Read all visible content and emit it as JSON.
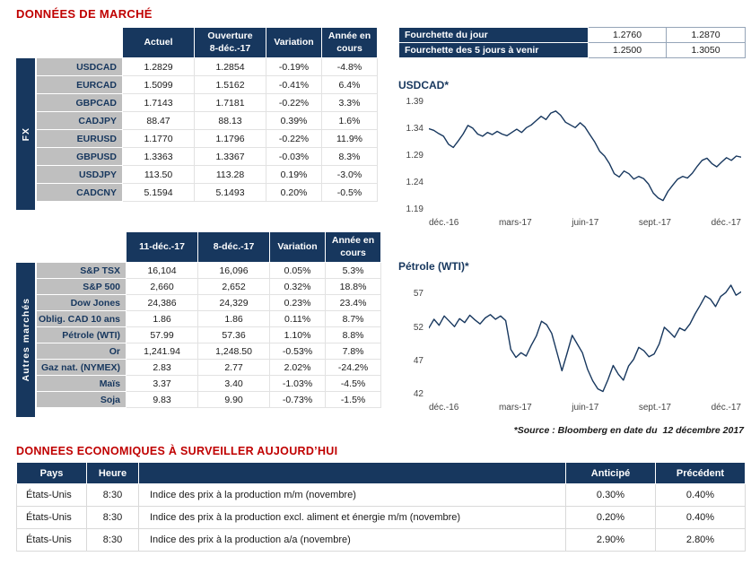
{
  "page": {
    "title": "DONNÉES DE MARCHÉ",
    "econ_title": "DONNEES ECONOMIQUES À SURVEILLER AUJOURD’HUI",
    "source_prefix": "*Source : Bloomberg en date du",
    "source_date": "12 décembre 2017"
  },
  "colors": {
    "navy": "#17375E",
    "title_red": "#C00000",
    "negative": "#E00000",
    "positive": "#009A44",
    "row_label_gray": "#BFBFBF",
    "chart_line": "#17375E"
  },
  "fx_table": {
    "group_label": "FX",
    "headers": [
      "Actuel",
      "Ouverture\n8-déc.-17",
      "Variation",
      "Année en\ncours"
    ],
    "rows": [
      {
        "label": "USDCAD",
        "actuel": "1.2829",
        "ouverture": "1.2854",
        "variation": "-0.19%",
        "ytd": "-4.8%"
      },
      {
        "label": "EURCAD",
        "actuel": "1.5099",
        "ouverture": "1.5162",
        "variation": "-0.41%",
        "ytd": "6.4%"
      },
      {
        "label": "GBPCAD",
        "actuel": "1.7143",
        "ouverture": "1.7181",
        "variation": "-0.22%",
        "ytd": "3.3%"
      },
      {
        "label": "CADJPY",
        "actuel": "88.47",
        "ouverture": "88.13",
        "variation": "0.39%",
        "ytd": "1.6%"
      },
      {
        "label": "EURUSD",
        "actuel": "1.1770",
        "ouverture": "1.1796",
        "variation": "-0.22%",
        "ytd": "11.9%"
      },
      {
        "label": "GBPUSD",
        "actuel": "1.3363",
        "ouverture": "1.3367",
        "variation": "-0.03%",
        "ytd": "8.3%"
      },
      {
        "label": "USDJPY",
        "actuel": "113.50",
        "ouverture": "113.28",
        "variation": "0.19%",
        "ytd": "-3.0%"
      },
      {
        "label": "CADCNY",
        "actuel": "5.1594",
        "ouverture": "5.1493",
        "variation": "0.20%",
        "ytd": "-0.5%"
      }
    ]
  },
  "ranges": {
    "rows": [
      {
        "label": "Fourchette du jour",
        "low": "1.2760",
        "high": "1.2870"
      },
      {
        "label": "Fourchette des 5 jours à venir",
        "low": "1.2500",
        "high": "1.3050"
      }
    ]
  },
  "markets_table": {
    "group_label": "Autres marchés",
    "headers": [
      "11-déc.-17",
      "8-déc.-17",
      "Variation",
      "Année en\ncours"
    ],
    "rows": [
      {
        "label": "S&P TSX",
        "c1": "16,104",
        "c2": "16,096",
        "variation": "0.05%",
        "ytd": "5.3%"
      },
      {
        "label": "S&P 500",
        "c1": "2,660",
        "c2": "2,652",
        "variation": "0.32%",
        "ytd": "18.8%"
      },
      {
        "label": "Dow Jones",
        "c1": "24,386",
        "c2": "24,329",
        "variation": "0.23%",
        "ytd": "23.4%"
      },
      {
        "label": "Oblig. CAD 10 ans",
        "c1": "1.86",
        "c2": "1.86",
        "variation": "0.11%",
        "ytd": "8.7%"
      },
      {
        "label": "Pétrole (WTI)",
        "c1": "57.99",
        "c2": "57.36",
        "variation": "1.10%",
        "ytd": "8.8%"
      },
      {
        "label": "Or",
        "c1": "1,241.94",
        "c2": "1,248.50",
        "variation": "-0.53%",
        "ytd": "7.8%"
      },
      {
        "label": "Gaz nat. (NYMEX)",
        "c1": "2.83",
        "c2": "2.77",
        "variation": "2.02%",
        "ytd": "-24.2%"
      },
      {
        "label": "Maïs",
        "c1": "3.37",
        "c2": "3.40",
        "variation": "-1.03%",
        "ytd": "-4.5%"
      },
      {
        "label": "Soja",
        "c1": "9.83",
        "c2": "9.90",
        "variation": "-0.73%",
        "ytd": "-1.5%"
      }
    ]
  },
  "econ_table": {
    "headers": {
      "pays": "Pays",
      "heure": "Heure",
      "desc": "",
      "anticipe": "Anticipé",
      "precedent": "Précédent"
    },
    "rows": [
      {
        "pays": "États-Unis",
        "heure": "8:30",
        "desc": "Indice des prix à la production m/m (novembre)",
        "anticipe": "0.30%",
        "precedent": "0.40%"
      },
      {
        "pays": "États-Unis",
        "heure": "8:30",
        "desc": "Indice des prix à la production excl. aliment et énergie m/m (novembre)",
        "anticipe": "0.20%",
        "precedent": "0.40%"
      },
      {
        "pays": "États-Unis",
        "heure": "8:30",
        "desc": "Indice des prix à la production a/a (novembre)",
        "anticipe": "2.90%",
        "precedent": "2.80%"
      }
    ]
  },
  "chart_data": [
    {
      "type": "line",
      "title": "USDCAD*",
      "x_tick_labels": [
        "déc.-16",
        "mars-17",
        "juin-17",
        "sept.-17",
        "déc.-17"
      ],
      "y_tick_labels": [
        "1.39",
        "1.34",
        "1.29",
        "1.24",
        "1.19"
      ],
      "y_tick_values": [
        1.39,
        1.34,
        1.29,
        1.24,
        1.19
      ],
      "ylim": [
        1.183,
        1.397
      ],
      "legend": "none",
      "grid": false,
      "values": [
        1.341,
        1.338,
        1.332,
        1.327,
        1.312,
        1.306,
        1.318,
        1.331,
        1.347,
        1.342,
        1.331,
        1.327,
        1.334,
        1.33,
        1.336,
        1.331,
        1.328,
        1.334,
        1.34,
        1.334,
        1.343,
        1.348,
        1.356,
        1.364,
        1.358,
        1.37,
        1.374,
        1.366,
        1.353,
        1.348,
        1.343,
        1.352,
        1.344,
        1.33,
        1.316,
        1.299,
        1.29,
        1.276,
        1.257,
        1.251,
        1.262,
        1.257,
        1.247,
        1.252,
        1.248,
        1.238,
        1.221,
        1.212,
        1.207,
        1.224,
        1.236,
        1.247,
        1.252,
        1.249,
        1.258,
        1.271,
        1.282,
        1.286,
        1.276,
        1.27,
        1.279,
        1.287,
        1.282,
        1.29,
        1.288
      ]
    },
    {
      "type": "line",
      "title": "Pétrole (WTI)*",
      "x_tick_labels": [
        "déc.-16",
        "mars-17",
        "juin-17",
        "sept.-17",
        "déc.-17"
      ],
      "y_tick_labels": [
        "57",
        "52",
        "47",
        "42"
      ],
      "y_tick_values": [
        57,
        52,
        47,
        42
      ],
      "ylim": [
        41.5,
        59.2
      ],
      "legend": "none",
      "grid": false,
      "values": [
        52.0,
        53.3,
        52.4,
        53.8,
        53.0,
        52.2,
        53.4,
        52.8,
        53.9,
        53.2,
        52.6,
        53.5,
        54.0,
        53.3,
        53.8,
        53.1,
        48.8,
        47.6,
        48.3,
        47.8,
        49.4,
        50.8,
        53.0,
        52.5,
        51.2,
        48.4,
        45.6,
        48.2,
        50.9,
        49.6,
        48.3,
        45.8,
        44.1,
        42.9,
        42.5,
        44.3,
        46.4,
        45.1,
        44.2,
        46.3,
        47.3,
        49.1,
        48.6,
        47.7,
        48.1,
        49.6,
        52.1,
        51.4,
        50.6,
        52.0,
        51.6,
        52.6,
        54.1,
        55.4,
        56.8,
        56.3,
        55.2,
        56.7,
        57.3,
        58.4,
        56.9,
        57.4
      ]
    }
  ]
}
